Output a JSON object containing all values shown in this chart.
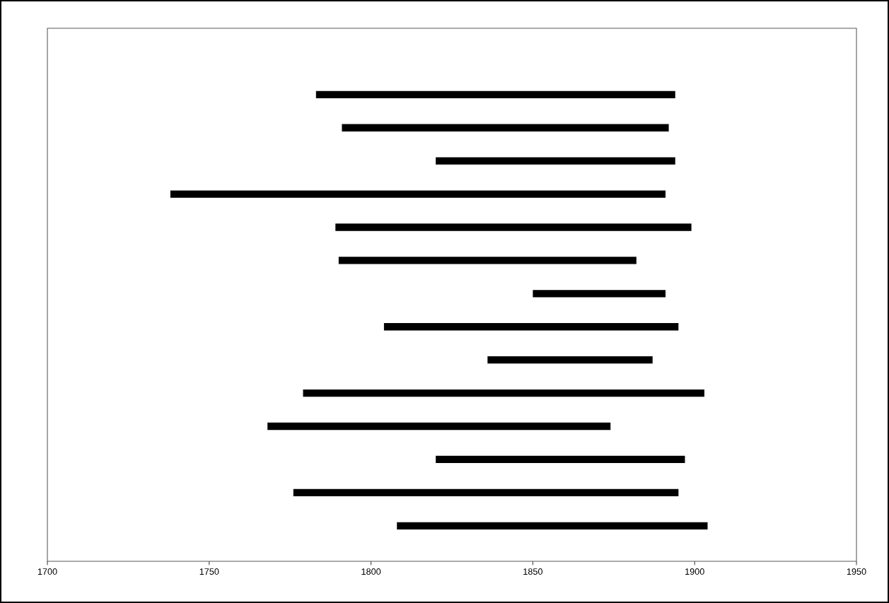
{
  "chart_data": {
    "type": "bar",
    "orientation": "horizontal",
    "color": "#000000",
    "categories": [
      null,
      null,
      null,
      null,
      null,
      null,
      null,
      null,
      null,
      null,
      null,
      null,
      null,
      null
    ],
    "base": [
      1783,
      1791,
      1820,
      1738,
      1789,
      1790,
      1850,
      1804,
      1836,
      1779,
      1768,
      1820,
      1776,
      1808
    ],
    "values": [
      111,
      101,
      74,
      153,
      110,
      92,
      41,
      91,
      51,
      124,
      106,
      77,
      119,
      96
    ],
    "xlim": [
      1700,
      1950
    ],
    "xticks": [
      1700,
      1750,
      1800,
      1850,
      1900,
      1950
    ],
    "grid": false
  }
}
